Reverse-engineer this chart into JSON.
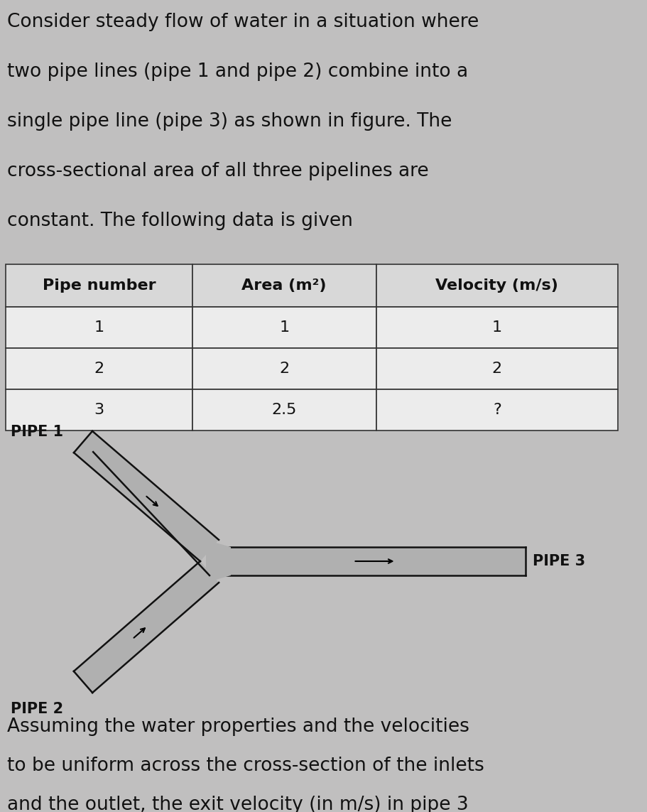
{
  "bg_color": "#c0bfbf",
  "title_lines": [
    "Consider steady flow of water in a situation where",
    "two pipe lines (pipe 1 and pipe 2) combine into a",
    "single pipe line (pipe 3) as shown in figure. The",
    "cross-sectional area of all three pipelines are",
    "constant. The following data is given"
  ],
  "table_headers": [
    "Pipe number",
    "Area (m²)",
    "Velocity (m/s)"
  ],
  "table_rows": [
    [
      "1",
      "1",
      "1"
    ],
    [
      "2",
      "2",
      "2"
    ],
    [
      "3",
      "2.5",
      "?"
    ]
  ],
  "pipe1_label": "PIPE 1",
  "pipe2_label": "PIPE 2",
  "pipe3_label": "PIPE 3",
  "footer_lines": [
    "Assuming the water properties and the velocities",
    "to be uniform across the cross-section of the inlets",
    "and the outlet, the exit velocity (in m/s) in pipe 3"
  ],
  "pipe_fill_color": "#b0b0b0",
  "pipe_edge_color": "#111111",
  "text_color": "#111111",
  "table_bg_header": "#e0e0e0",
  "table_bg_row": "#f0f0f0",
  "title_fontsize": 19,
  "table_header_fontsize": 16,
  "table_row_fontsize": 16,
  "label_fontsize": 15,
  "footer_fontsize": 19
}
